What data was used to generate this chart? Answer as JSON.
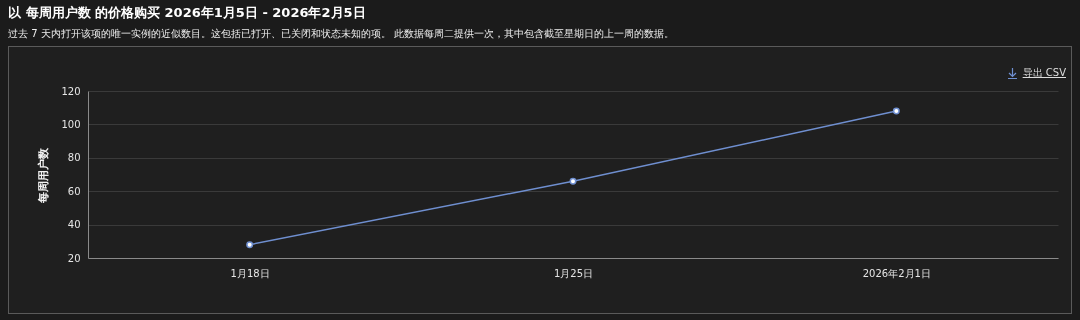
{
  "chart_data": {
    "type": "line",
    "title": "以 每周用户数 的价格购买 2026年1月5日 - 2026年2月5日",
    "subtitle": "过去 7 天内打开该项的唯一实例的近似数目。这包括已打开、已关闭和状态未知的项。 此数据每周二提供一次，其中包含截至星期日的上一周的数据。",
    "ylabel": "每周用户数",
    "categories": [
      "1月18日",
      "1月25日",
      "2026年2月1日"
    ],
    "series": [
      {
        "color": "#6f8fd0",
        "values": [
          28,
          66,
          108
        ]
      }
    ],
    "ylim": [
      20,
      120
    ],
    "yticks": [
      20,
      40,
      60,
      80,
      100,
      120
    ],
    "grid": "y",
    "marker": "circle",
    "line_style": "solid",
    "annotations": [
      "导出 CSV"
    ]
  }
}
